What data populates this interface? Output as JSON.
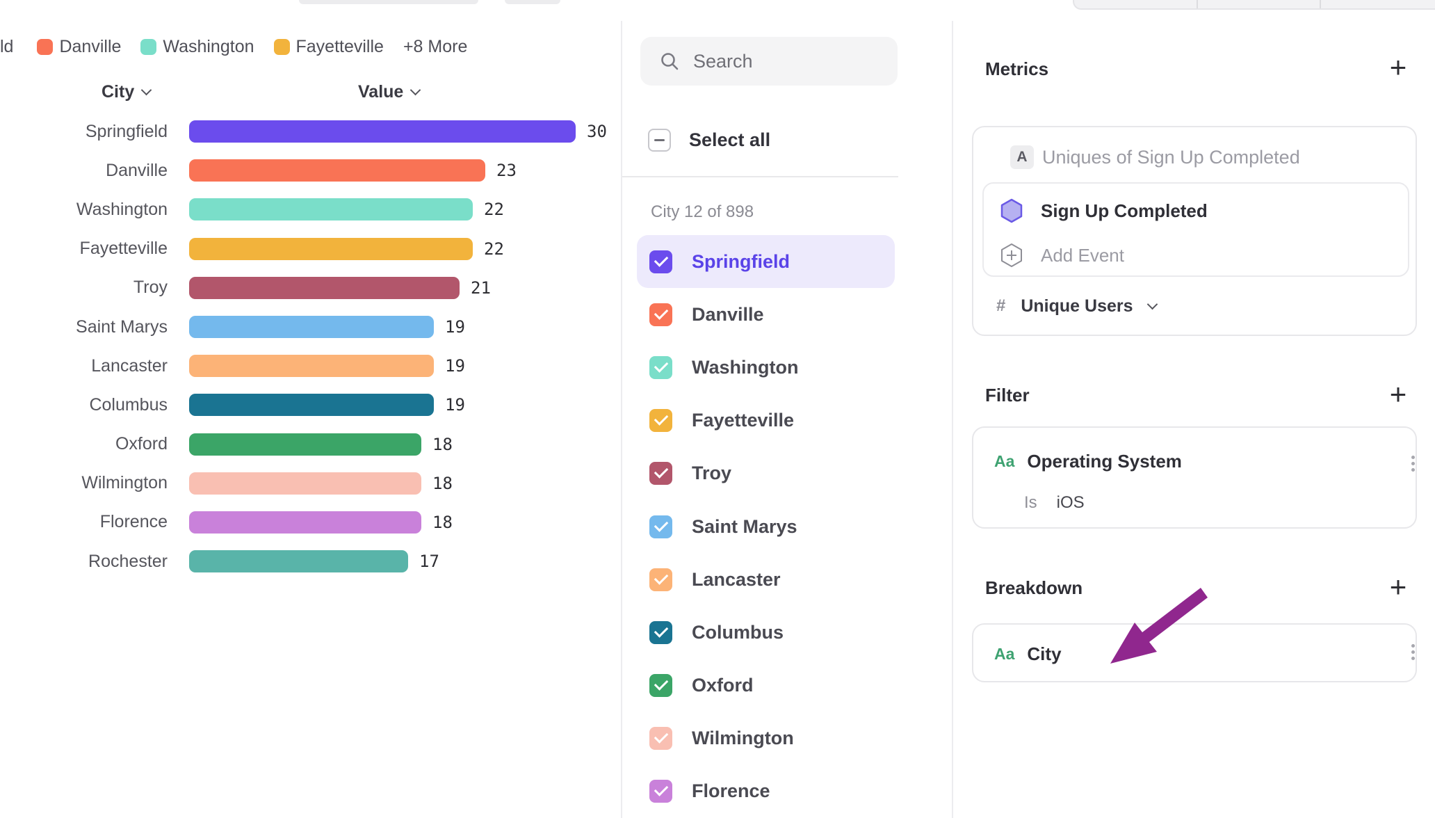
{
  "colors": {
    "accent": "#6b4ced",
    "highlight_row_bg": "#edeafc",
    "highlight_label": "#5a43e8",
    "annotation_arrow": "#90278e",
    "type_badge_green": "#3ea271",
    "hexagon_fill": "#b6b1f1",
    "hexagon_stroke": "#6a5ae6"
  },
  "legend": {
    "truncated_item": "ld",
    "items": [
      {
        "label": "Danville",
        "color": "#f97355"
      },
      {
        "label": "Washington",
        "color": "#7adec9"
      },
      {
        "label": "Fayetteville",
        "color": "#f2b33c"
      }
    ],
    "more_label": "+8 More"
  },
  "chart_data": {
    "type": "bar",
    "orientation": "horizontal",
    "title": "",
    "xlabel": "Value",
    "ylabel": "City",
    "columns": {
      "category": "City",
      "value": "Value"
    },
    "categories": [
      "Springfield",
      "Danville",
      "Washington",
      "Fayetteville",
      "Troy",
      "Saint Marys",
      "Lancaster",
      "Columbus",
      "Oxford",
      "Wilmington",
      "Florence",
      "Rochester"
    ],
    "values": [
      30,
      23,
      22,
      22,
      21,
      19,
      19,
      19,
      18,
      18,
      18,
      17
    ],
    "bar_colors": [
      "#6b4ced",
      "#f97355",
      "#7adec9",
      "#f2b33c",
      "#b2566b",
      "#74b9ed",
      "#fcb377",
      "#1a7492",
      "#3ba567",
      "#f9bfb2",
      "#c981da",
      "#59b4a9"
    ],
    "xlim": [
      0,
      30
    ],
    "grid": false,
    "legend_position": "top"
  },
  "city_selector": {
    "search_placeholder": "Search",
    "select_all_label": "Select all",
    "count_label": "City 12 of 898",
    "items": [
      {
        "label": "Springfield",
        "color": "#6b4ced",
        "checked": true,
        "highlighted": true
      },
      {
        "label": "Danville",
        "color": "#f97355",
        "checked": true,
        "highlighted": false
      },
      {
        "label": "Washington",
        "color": "#7adec9",
        "checked": true,
        "highlighted": false
      },
      {
        "label": "Fayetteville",
        "color": "#f2b33c",
        "checked": true,
        "highlighted": false
      },
      {
        "label": "Troy",
        "color": "#b2566b",
        "checked": true,
        "highlighted": false
      },
      {
        "label": "Saint Marys",
        "color": "#74b9ed",
        "checked": true,
        "highlighted": false
      },
      {
        "label": "Lancaster",
        "color": "#fcb377",
        "checked": true,
        "highlighted": false
      },
      {
        "label": "Columbus",
        "color": "#1a7492",
        "checked": true,
        "highlighted": false
      },
      {
        "label": "Oxford",
        "color": "#3ba567",
        "checked": true,
        "highlighted": false
      },
      {
        "label": "Wilmington",
        "color": "#f9bfb2",
        "checked": true,
        "highlighted": false
      },
      {
        "label": "Florence",
        "color": "#c981da",
        "checked": true,
        "highlighted": false
      }
    ]
  },
  "builder": {
    "metrics": {
      "title": "Metrics",
      "add_label": "+",
      "row_badge": "A",
      "summary": "Uniques of Sign Up Completed",
      "event_name": "Sign Up Completed",
      "add_event_label": "Add Event",
      "aggregation_prefix": "#",
      "aggregation_label": "Unique Users"
    },
    "filter": {
      "title": "Filter",
      "add_label": "+",
      "type_badge": "Aa",
      "property": "Operating System",
      "operator": "Is",
      "value": "iOS"
    },
    "breakdown": {
      "title": "Breakdown",
      "add_label": "+",
      "type_badge": "Aa",
      "property": "City"
    }
  }
}
